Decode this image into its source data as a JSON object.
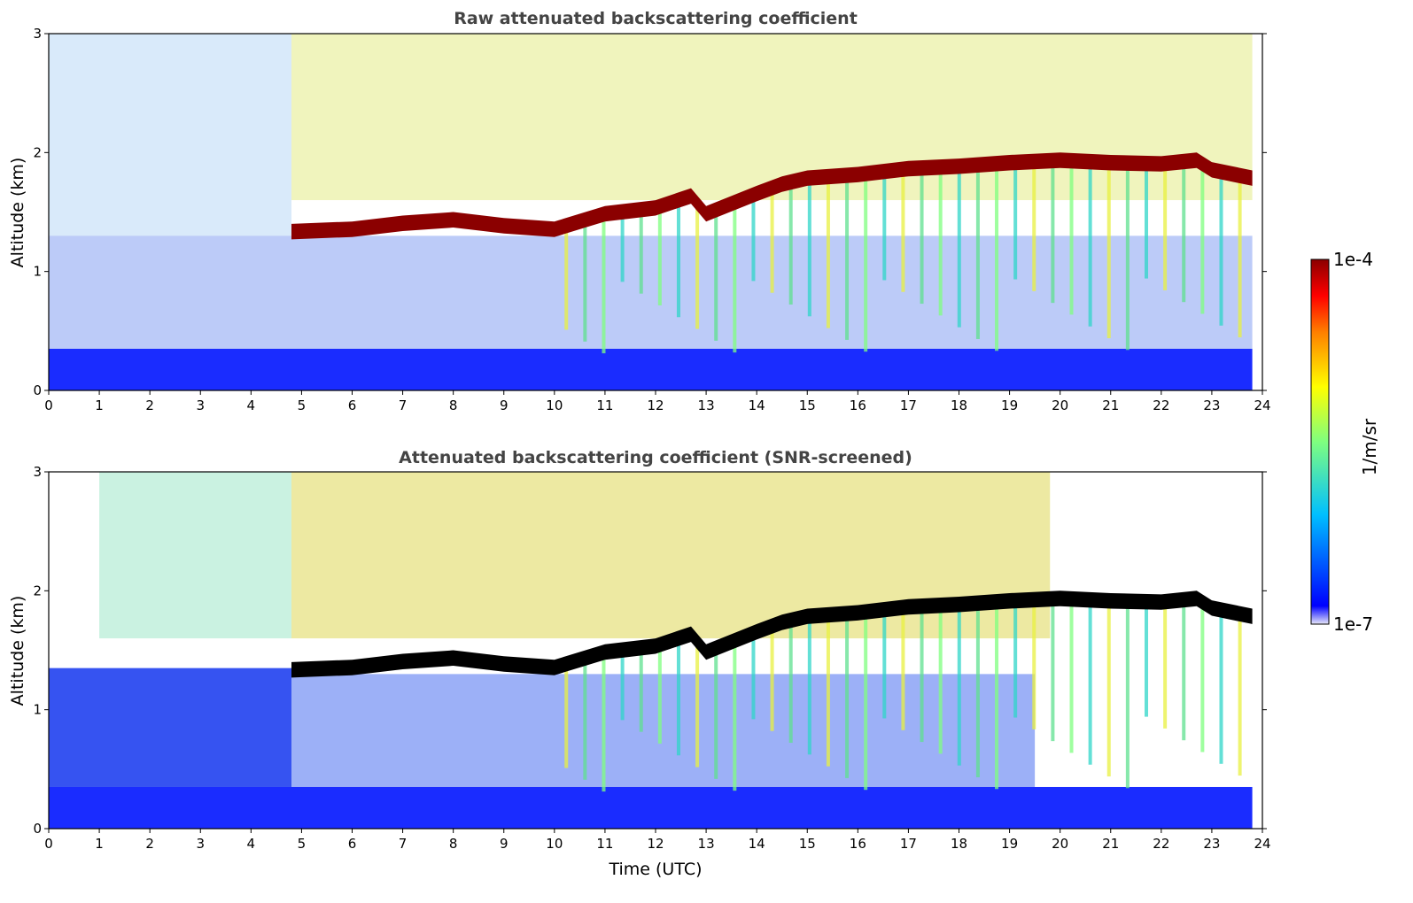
{
  "chart_data": [
    {
      "type": "heatmap",
      "title": "Raw attenuated backscattering coefficient",
      "xlabel": "",
      "ylabel": "Altitude (km)",
      "xlim": [
        0,
        24
      ],
      "ylim": [
        0,
        3
      ],
      "xticks": [
        "0",
        "1",
        "2",
        "3",
        "4",
        "5",
        "6",
        "7",
        "8",
        "9",
        "10",
        "11",
        "12",
        "13",
        "14",
        "15",
        "16",
        "17",
        "18",
        "19",
        "20",
        "21",
        "22",
        "23",
        "24"
      ],
      "yticks": [
        "0",
        "1",
        "2",
        "3"
      ],
      "data_end_time": 23.8,
      "layer_start_time": 4.8,
      "layer_color": "#8b0000",
      "cloud_layer_top_km": [
        [
          4.8,
          1.4
        ],
        [
          6,
          1.42
        ],
        [
          7,
          1.47
        ],
        [
          8,
          1.5
        ],
        [
          9,
          1.45
        ],
        [
          10,
          1.42
        ],
        [
          11,
          1.55
        ],
        [
          12,
          1.6
        ],
        [
          12.7,
          1.7
        ],
        [
          13,
          1.55
        ],
        [
          14,
          1.72
        ],
        [
          14.5,
          1.8
        ],
        [
          15,
          1.85
        ],
        [
          16,
          1.88
        ],
        [
          17,
          1.93
        ],
        [
          18,
          1.95
        ],
        [
          19,
          1.98
        ],
        [
          20,
          2.0
        ],
        [
          21,
          1.98
        ],
        [
          22,
          1.97
        ],
        [
          22.7,
          2.0
        ],
        [
          23,
          1.92
        ],
        [
          23.8,
          1.85
        ]
      ]
    },
    {
      "type": "heatmap",
      "title": "Attenuated backscattering coefficient (SNR-screened)",
      "xlabel": "Time (UTC)",
      "ylabel": "Altitude (km)",
      "xlim": [
        0,
        24
      ],
      "ylim": [
        0,
        3
      ],
      "xticks": [
        "0",
        "1",
        "2",
        "3",
        "4",
        "5",
        "6",
        "7",
        "8",
        "9",
        "10",
        "11",
        "12",
        "13",
        "14",
        "15",
        "16",
        "17",
        "18",
        "19",
        "20",
        "21",
        "22",
        "23",
        "24"
      ],
      "yticks": [
        "0",
        "1",
        "2",
        "3"
      ],
      "data_end_time": 23.8,
      "layer_start_time": 4.8,
      "layer_color": "#000000",
      "cloud_layer_top_km": [
        [
          4.8,
          1.4
        ],
        [
          6,
          1.42
        ],
        [
          7,
          1.47
        ],
        [
          8,
          1.5
        ],
        [
          9,
          1.45
        ],
        [
          10,
          1.42
        ],
        [
          11,
          1.55
        ],
        [
          12,
          1.6
        ],
        [
          12.7,
          1.7
        ],
        [
          13,
          1.55
        ],
        [
          14,
          1.72
        ],
        [
          14.5,
          1.8
        ],
        [
          15,
          1.85
        ],
        [
          16,
          1.88
        ],
        [
          17,
          1.93
        ],
        [
          18,
          1.95
        ],
        [
          19,
          1.98
        ],
        [
          20,
          2.0
        ],
        [
          21,
          1.98
        ],
        [
          22,
          1.97
        ],
        [
          22.7,
          2.0
        ],
        [
          23,
          1.92
        ],
        [
          23.8,
          1.85
        ]
      ]
    }
  ],
  "colorbar": {
    "label": "1/m/sr",
    "max_label": "1e-4",
    "min_label": "1e-7",
    "scale": "log",
    "colormap": [
      "#e8e8f8",
      "#0000ff",
      "#00bfff",
      "#7fff7f",
      "#ffff00",
      "#ff8000",
      "#ff0000",
      "#8b0000"
    ]
  }
}
